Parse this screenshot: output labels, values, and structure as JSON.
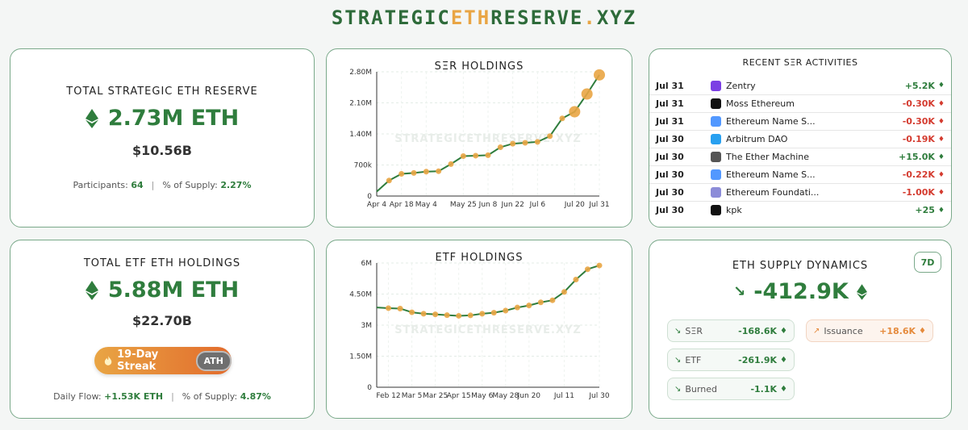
{
  "logo": {
    "pre": "STRATEGIC",
    "mid": "ETH",
    "post": "RESERVE",
    "dot": ".",
    "tld": "XYZ"
  },
  "ser": {
    "title": "TOTAL STRATEGIC ETH RESERVE",
    "amount": "2.73M ETH",
    "usd": "$10.56B",
    "participants_label": "Participants:",
    "participants": "64",
    "supply_label": "% of Supply:",
    "supply": "2.27%"
  },
  "etf": {
    "title": "TOTAL ETF ETH HOLDINGS",
    "amount": "5.88M ETH",
    "usd": "$22.70B",
    "streak": "19-Day Streak",
    "ath": "ATH",
    "flow_label": "Daily Flow:",
    "flow": "+1.53K ETH",
    "supply_label": "% of Supply:",
    "supply": "4.87%"
  },
  "watermark": "STRATEGICETHRESERVE.XYZ",
  "chart_data": [
    {
      "type": "line",
      "title": "SΞR HOLDINGS",
      "x": [
        "Apr 4",
        "Apr 10",
        "Apr 18",
        "Apr 26",
        "May 4",
        "May 10",
        "May 16",
        "May 25",
        "Jun 1",
        "Jun 8",
        "Jun 15",
        "Jun 22",
        "Jun 29",
        "Jul 6",
        "Jul 12",
        "Jul 17",
        "Jul 20",
        "Jul 25",
        "Jul 31"
      ],
      "values": [
        0.1,
        0.35,
        0.5,
        0.52,
        0.55,
        0.56,
        0.72,
        0.9,
        0.91,
        0.92,
        1.1,
        1.18,
        1.2,
        1.22,
        1.35,
        1.75,
        1.9,
        2.3,
        2.73
      ],
      "xticks": [
        "Apr 4",
        "Apr 18",
        "May 4",
        "May 25",
        "Jun 8",
        "Jun 22",
        "Jul 6",
        "Jul 20",
        "Jul 31"
      ],
      "yticks": [
        "0",
        "700k",
        "1.40M",
        "2.10M",
        "2.80M"
      ],
      "ylim": [
        0,
        2.8
      ],
      "unit": "M ETH",
      "color": "#2f7d3d",
      "marker_color": "#e9a544"
    },
    {
      "type": "line",
      "title": "ETF HOLDINGS",
      "x": [
        "Feb 1",
        "Feb 12",
        "Feb 22",
        "Mar 5",
        "Mar 15",
        "Mar 25",
        "Apr 5",
        "Apr 15",
        "Apr 25",
        "May 6",
        "May 16",
        "May 28",
        "Jun 8",
        "Jun 20",
        "Jun 30",
        "Jul 5",
        "Jul 11",
        "Jul 18",
        "Jul 24",
        "Jul 30"
      ],
      "values": [
        3.85,
        3.82,
        3.8,
        3.62,
        3.55,
        3.52,
        3.48,
        3.45,
        3.47,
        3.55,
        3.6,
        3.7,
        3.85,
        3.95,
        4.1,
        4.2,
        4.6,
        5.2,
        5.7,
        5.88
      ],
      "xticks": [
        "Feb 12",
        "Mar 5",
        "Mar 25",
        "Apr 15",
        "May 6",
        "May 28",
        "Jun 20",
        "Jul 11",
        "Jul 30"
      ],
      "yticks": [
        "0",
        "1.50M",
        "3M",
        "4.50M",
        "6M"
      ],
      "ylim": [
        0,
        6
      ],
      "unit": "M ETH",
      "color": "#2f7d3d",
      "marker_color": "#e9a544"
    }
  ],
  "activities": {
    "title": "RECENT SΞR ACTIVITIES",
    "rows": [
      {
        "date": "Jul 31",
        "name": "Zentry",
        "value": "+5.2K",
        "sign": "pos",
        "icon": "zentry-icon",
        "color": "#7b3fe4"
      },
      {
        "date": "Jul 31",
        "name": "Moss Ethereum",
        "value": "-0.30K",
        "sign": "neg",
        "icon": "moss-icon",
        "color": "#111111"
      },
      {
        "date": "Jul 31",
        "name": "Ethereum Name S...",
        "value": "-0.30K",
        "sign": "neg",
        "icon": "ens-icon",
        "color": "#5298ff"
      },
      {
        "date": "Jul 30",
        "name": "Arbitrum DAO",
        "value": "-0.19K",
        "sign": "neg",
        "icon": "arbitrum-icon",
        "color": "#28a0f0"
      },
      {
        "date": "Jul 30",
        "name": "The Ether Machine",
        "value": "+15.0K",
        "sign": "pos",
        "icon": "ether-machine-icon",
        "color": "#555555"
      },
      {
        "date": "Jul 30",
        "name": "Ethereum Name S...",
        "value": "-0.22K",
        "sign": "neg",
        "icon": "ens-icon",
        "color": "#5298ff"
      },
      {
        "date": "Jul 30",
        "name": "Ethereum Foundati...",
        "value": "-1.00K",
        "sign": "neg",
        "icon": "eth-foundation-icon",
        "color": "#8c8cd8"
      },
      {
        "date": "Jul 30",
        "name": "kpk",
        "value": "+25",
        "sign": "pos",
        "icon": "kpk-icon",
        "color": "#111111"
      }
    ]
  },
  "supply": {
    "title": "ETH SUPPLY DYNAMICS",
    "period": "7D",
    "value": "-412.9K",
    "ser_label": "SΞR",
    "ser_value": "-168.6K",
    "etf_label": "ETF",
    "etf_value": "-261.9K",
    "burned_label": "Burned",
    "burned_value": "-1.1K",
    "issuance_label": "Issuance",
    "issuance_value": "+18.6K"
  }
}
